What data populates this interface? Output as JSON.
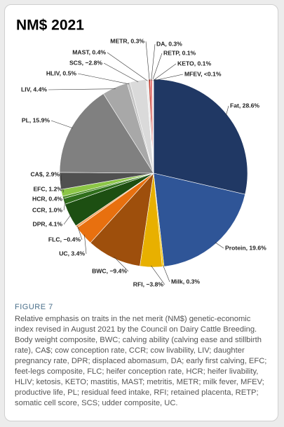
{
  "chart_data": {
    "type": "pie",
    "title": "NM$ 2021",
    "values": [
      28.6,
      19.6,
      0.3,
      -3.8,
      -9.4,
      3.4,
      -0.4,
      4.1,
      1.0,
      0.4,
      1.2,
      2.9,
      15.9,
      4.4,
      0.5,
      -2.8,
      0.4,
      0.3,
      0.3,
      0.1,
      0.1,
      0.05
    ],
    "value_labels": [
      "Fat, 28.6%",
      "Protein, 19.6%",
      "Milk, 0.3%",
      "RFI, −3.8%",
      "BWC, −9.4%",
      "UC, 3.4%",
      "FLC, −0.4%",
      "DPR, 4.1%",
      "CCR, 1.0%",
      "HCR, 0.4%",
      "EFC, 1.2%",
      "CA$, 2.9%",
      "PL, 15.9%",
      "LIV, 4.4%",
      "HLIV, 0.5%",
      "SCS, −2.8%",
      "MAST, 0.4%",
      "METR, 0.3%",
      "DA, 0.3%",
      "RETP, 0.1%",
      "KETO, 0.1%",
      "MFEV, <0.1%"
    ],
    "colors": [
      "#203864",
      "#2f5597",
      "#f4c300",
      "#e8b000",
      "#9e4f0c",
      "#e8700f",
      "#f4a460",
      "#1d4f12",
      "#2f6e1b",
      "#4d8f26",
      "#8cc646",
      "#505050",
      "#808080",
      "#a8a8a8",
      "#c4c4c4",
      "#dadada",
      "#ededed",
      "#c0392b",
      "#e05a5a",
      "#e88080",
      "#d8d8d8",
      "#bbbbbb"
    ]
  },
  "caption": {
    "label": "FIGURE 7",
    "text": "Relative emphasis on traits in the net merit (NM$) genetic-economic index revised in August 2021 by the Council on Dairy Cattle Breeding. Body weight composite, BWC; calving ability (calving ease and stillbirth rate), CA$; cow conception rate, CCR; cow livability, LIV; daughter pregnancy rate, DPR; displaced abomasum, DA; early first calving, EFC; feet-legs composite, FLC; heifer conception rate, HCR; heifer livability, HLIV; ketosis, KETO; mastitis, MAST; metritis, METR; milk fever, MFEV; productive life, PL; residual feed intake, RFI; retained placenta, RETP; somatic cell score, SCS; udder composite, UC."
  }
}
